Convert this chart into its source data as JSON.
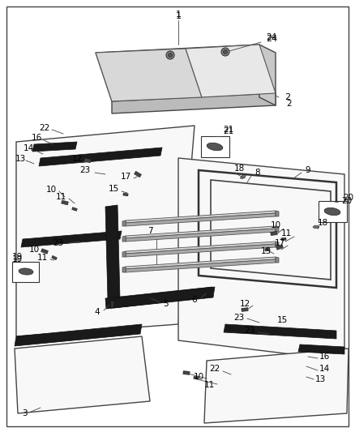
{
  "bg": "#ffffff",
  "border": "#444444",
  "lc": "#111111",
  "dark": "#222222",
  "gray": "#888888",
  "light_gray": "#cccccc",
  "panel_fill": "#f5f5f5",
  "fw": 4.38,
  "fh": 5.33,
  "dpi": 100
}
